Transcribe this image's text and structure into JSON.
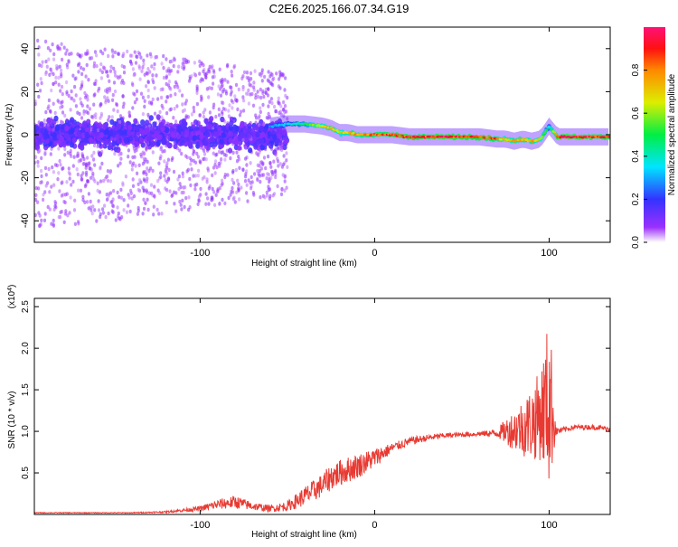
{
  "title": "C2E6.2025.166.07.34.G19",
  "colors": {
    "snr_line": "#e83a32",
    "frame": "#000000",
    "spectrogram_background": "#ffffff"
  },
  "chart_data": [
    {
      "type": "heatmap",
      "name": "spectrogram",
      "xlabel": "Height of straight line (km)",
      "ylabel": "Frequency (Hz)",
      "xlim": [
        -195,
        135
      ],
      "ylim": [
        -50,
        50
      ],
      "xticks": [
        -100,
        0,
        100
      ],
      "yticks": [
        -40,
        -20,
        0,
        20,
        40
      ],
      "colorbar": {
        "label": "Normalized spectral amplitude",
        "range": [
          0,
          1
        ],
        "ticks": [
          0.0,
          0.2,
          0.4,
          0.6,
          0.8
        ],
        "tick_labels": [
          "0.0",
          "0.2",
          "0.4",
          "0.6",
          "0.8"
        ],
        "colormap": "rainbow (white→violet→blue→cyan→green→yellow→red→magenta)"
      },
      "ridge": {
        "description": "Dominant frequency ridge of the signal",
        "x": [
          -60,
          -50,
          -40,
          -30,
          -25,
          -20,
          -15,
          -10,
          0,
          10,
          20,
          40,
          60,
          70,
          75,
          80,
          85,
          90,
          95,
          100,
          105,
          120,
          135
        ],
        "freq": [
          4,
          5,
          5,
          4,
          3,
          1,
          1,
          0,
          0,
          0,
          -1,
          -1,
          -1,
          -2,
          -2,
          -3,
          -2,
          -3,
          -2,
          4,
          -1,
          -1,
          -1
        ],
        "amplitude": [
          0.3,
          0.35,
          0.5,
          0.7,
          0.75,
          0.7,
          0.75,
          0.8,
          0.85,
          0.9,
          0.9,
          0.95,
          0.9,
          0.85,
          0.7,
          0.8,
          0.75,
          0.8,
          0.7,
          0.4,
          0.95,
          0.95,
          0.9
        ]
      },
      "noise_region": {
        "description": "Broad low-amplitude noise at low heights",
        "x_range": [
          -195,
          -55
        ],
        "freq_spread": 45
      }
    },
    {
      "type": "line",
      "name": "snr",
      "xlabel": "Height of straight line (km)",
      "ylabel": "SNR (10 * v/v)",
      "y_multiplier_label": "(x10",
      "y_multiplier_exponent": "4",
      "y_multiplier_suffix": ")",
      "xlim": [
        -195,
        135
      ],
      "ylim": [
        0,
        2.6
      ],
      "xticks": [
        -100,
        0,
        100
      ],
      "yticks": [
        0.5,
        1.0,
        1.5,
        2.0,
        2.5
      ],
      "ytick_labels": [
        "0.5",
        "1.0",
        "1.5",
        "2.0",
        "2.5"
      ],
      "series": [
        {
          "x": [
            -195,
            -170,
            -140,
            -120,
            -110,
            -100,
            -90,
            -80,
            -70,
            -60,
            -50,
            -40,
            -30,
            -25,
            -20,
            -10,
            0,
            10,
            20,
            30,
            40,
            50,
            60,
            70,
            75,
            80,
            85,
            90,
            95,
            98,
            100,
            102,
            104,
            108,
            115,
            125,
            135
          ],
          "y": [
            0.02,
            0.02,
            0.02,
            0.03,
            0.05,
            0.07,
            0.12,
            0.15,
            0.1,
            0.07,
            0.1,
            0.22,
            0.35,
            0.45,
            0.5,
            0.58,
            0.68,
            0.8,
            0.88,
            0.92,
            0.95,
            0.96,
            0.97,
            0.98,
            1.0,
            1.02,
            1.05,
            1.1,
            1.2,
            1.3,
            1.4,
            1.2,
            1.0,
            1.02,
            1.05,
            1.05,
            1.03
          ],
          "noise_amplitude": [
            0.005,
            0.005,
            0.005,
            0.01,
            0.02,
            0.03,
            0.06,
            0.08,
            0.05,
            0.04,
            0.06,
            0.12,
            0.14,
            0.16,
            0.16,
            0.15,
            0.12,
            0.06,
            0.05,
            0.04,
            0.03,
            0.03,
            0.03,
            0.05,
            0.15,
            0.25,
            0.35,
            0.45,
            0.55,
            0.8,
            1.1,
            0.6,
            0.05,
            0.03,
            0.03,
            0.03,
            0.03
          ]
        }
      ]
    }
  ]
}
